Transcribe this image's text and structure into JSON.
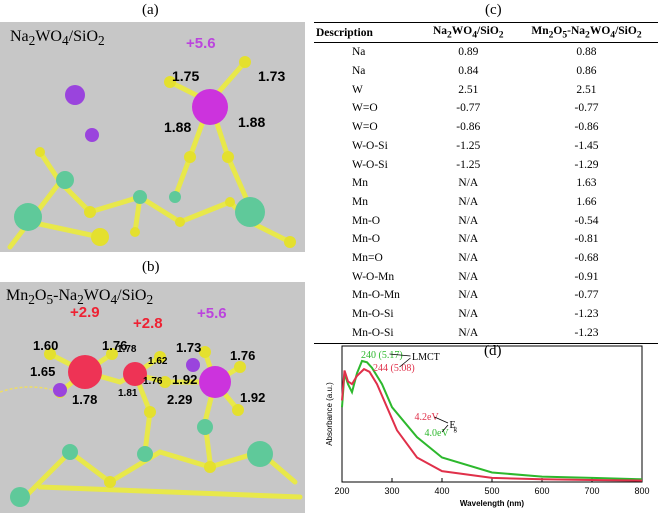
{
  "panels": {
    "a": {
      "letter": "(a)",
      "title": "Na2WO4/SiO2",
      "charge": "+5.6",
      "bonds": [
        "1.75",
        "1.73",
        "1.88",
        "1.88"
      ]
    },
    "b": {
      "letter": "(b)",
      "title": "Mn2O5-Na2WO4/SiO2",
      "charges": [
        "+2.9",
        "+2.8",
        "+5.6"
      ],
      "bonds": [
        "1.60",
        "1.76",
        "1.65",
        "1.78",
        "1.78",
        "1.62",
        "1.76",
        "1.81",
        "1.73",
        "1.76",
        "1.92",
        "2.29",
        "1.92"
      ]
    },
    "c": {
      "letter": "(c)"
    },
    "d": {
      "letter": "(d)"
    }
  },
  "table": {
    "headers": [
      "Description",
      "Na2WO4/SiO2",
      "Mn2O5-Na2WO4/SiO2"
    ],
    "rows": [
      [
        "Na",
        "0.89",
        "0.88"
      ],
      [
        "Na",
        "0.84",
        "0.86"
      ],
      [
        "W",
        "2.51",
        "2.51"
      ],
      [
        "W=O",
        "-0.77",
        "-0.77"
      ],
      [
        "W=O",
        "-0.86",
        "-0.86"
      ],
      [
        "W-O-Si",
        "-1.25",
        "-1.45"
      ],
      [
        "W-O-Si",
        "-1.25",
        "-1.29"
      ],
      [
        "Mn",
        "N/A",
        "1.63"
      ],
      [
        "Mn",
        "N/A",
        "1.66"
      ],
      [
        "Mn-O",
        "N/A",
        "-0.54"
      ],
      [
        "Mn-O",
        "N/A",
        "-0.81"
      ],
      [
        "Mn=O",
        "N/A",
        "-0.68"
      ],
      [
        "W-O-Mn",
        "N/A",
        "-0.91"
      ],
      [
        "Mn-O-Mn",
        "N/A",
        "-0.77"
      ],
      [
        "Mn-O-Si",
        "N/A",
        "-1.23"
      ],
      [
        "Mn-O-Si",
        "N/A",
        "-1.23"
      ]
    ]
  },
  "colors": {
    "green_curve": "#2db82d",
    "red_curve": "#e0304a",
    "charge_red": "#ee2233",
    "charge_purple": "#bb44dd",
    "bg_gray": "#c7c7c7"
  },
  "chart_data": {
    "type": "line",
    "xlabel": "Wavelength (nm)",
    "ylabel": "Absorbance (a.u.)",
    "xlim": [
      200,
      800
    ],
    "xticks": [
      200,
      300,
      400,
      500,
      600,
      700,
      800
    ],
    "series": [
      {
        "name": "green",
        "color": "#2db82d",
        "x": [
          200,
          205,
          212,
          220,
          230,
          240,
          250,
          260,
          280,
          300,
          350,
          400,
          500,
          600,
          700,
          800
        ],
        "y": [
          0.55,
          0.8,
          0.72,
          0.66,
          0.8,
          0.89,
          0.88,
          0.84,
          0.72,
          0.55,
          0.33,
          0.18,
          0.07,
          0.04,
          0.03,
          0.02
        ]
      },
      {
        "name": "red",
        "color": "#e0304a",
        "x": [
          200,
          205,
          212,
          220,
          230,
          244,
          255,
          270,
          290,
          310,
          350,
          400,
          500,
          600,
          700,
          800
        ],
        "y": [
          0.6,
          0.82,
          0.74,
          0.72,
          0.78,
          0.83,
          0.81,
          0.72,
          0.55,
          0.38,
          0.18,
          0.08,
          0.03,
          0.02,
          0.015,
          0.01
        ]
      }
    ],
    "annotations": {
      "green_peak": "240 (5.17)",
      "red_peak": "244 (5.08)",
      "lmct": "LMCT",
      "eg_red": "4.2eV",
      "eg_green": "4.0eV",
      "eg_label": "E",
      "eg_sub": "g"
    }
  }
}
